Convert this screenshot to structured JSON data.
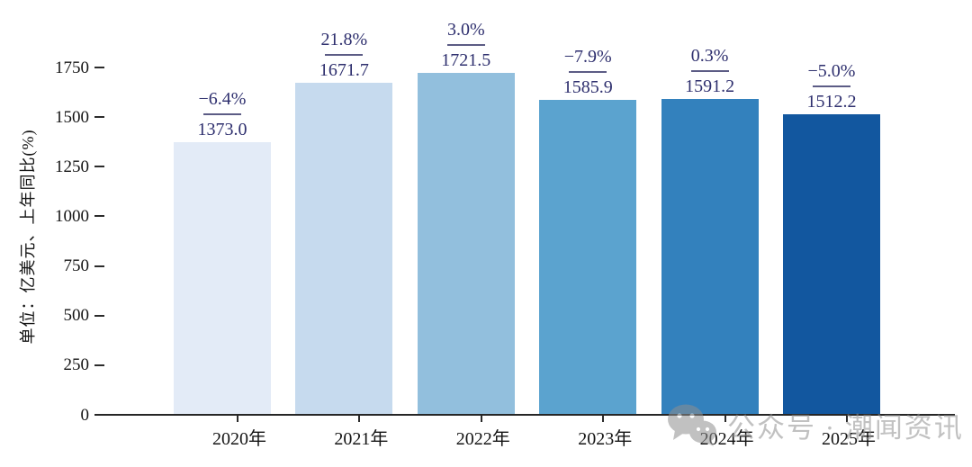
{
  "chart_data": {
    "type": "bar",
    "title": "",
    "categories": [
      "2020年",
      "2021年",
      "2022年",
      "2023年",
      "2024年",
      "2025年"
    ],
    "values": [
      1373.0,
      1671.7,
      1721.5,
      1585.9,
      1591.2,
      1512.2
    ],
    "value_labels": [
      "1373.0",
      "1671.7",
      "1721.5",
      "1585.9",
      "1591.2",
      "1512.2"
    ],
    "growth_labels": [
      "−6.4%",
      "21.8%",
      "3.0%",
      "−7.9%",
      "0.3%",
      "−5.0%"
    ],
    "series_note": "每根柱上方标注：上年同比百分比 / 横线 / 当年数值",
    "bar_colors": [
      "#e3ebf7",
      "#c6daee",
      "#92bfdd",
      "#5ba3cf",
      "#3381bd",
      "#12579f"
    ],
    "xlabel": "",
    "ylabel": "单位：亿美元、上年同比(%)",
    "y_ticks": [
      0,
      250,
      500,
      750,
      1000,
      1250,
      1500,
      1750
    ],
    "ylim": [
      0,
      1980
    ],
    "grid": false,
    "legend": null,
    "annotation_color": "#2e2f6e",
    "annotation_line_color": "#5c5c85",
    "axis_color": "#262626"
  },
  "watermark": {
    "icon": "wechat-icon",
    "text": "公众号 · 潮闻资讯",
    "color": "#8f8f8f"
  }
}
